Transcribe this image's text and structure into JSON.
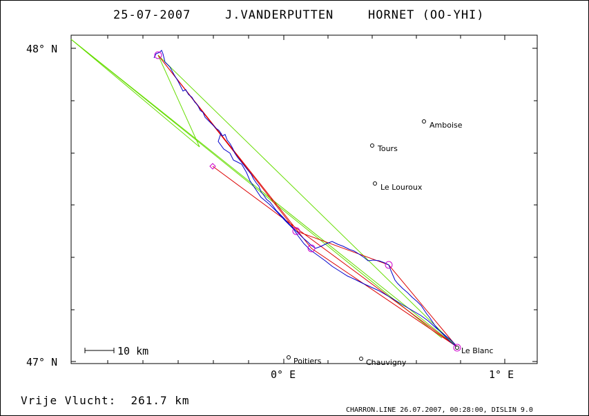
{
  "header": {
    "date": "25-07-2007",
    "pilot": "J.VANDERPUTTEN",
    "glider": "HORNET (OO-YHI)"
  },
  "axes": {
    "lat_top": "48° N",
    "lat_bottom": "47° N",
    "lon_left": "0° E",
    "lon_right": "1° E"
  },
  "scale_bar": {
    "label": "10 km"
  },
  "cities": [
    {
      "name": "Amboise"
    },
    {
      "name": "Tours"
    },
    {
      "name": "Le Louroux"
    },
    {
      "name": "Poitiers"
    },
    {
      "name": "Chauvigny"
    },
    {
      "name": "Le Blanc"
    }
  ],
  "footer": {
    "distance": "Vrije Vlucht:  261.7 km",
    "credits": "CHARRON.LINE 26.07.2007, 00:28:00, DISLIN 9.0"
  },
  "colors": {
    "track": "#0000cc",
    "task": "#dd0000",
    "faiSector": "#66dd00",
    "turnpoint": "#cc00cc"
  }
}
